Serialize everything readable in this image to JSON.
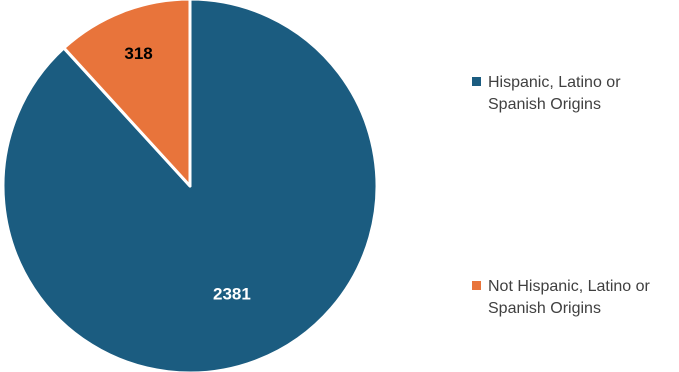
{
  "chart_data": {
    "type": "pie",
    "title": "",
    "categories": [
      "Hispanic, Latino or Spanish Origins",
      "Not Hispanic, Latino or Spanish Origins"
    ],
    "values": [
      2381,
      318
    ],
    "data_labels": [
      "2381",
      "318"
    ],
    "colors": [
      "#1b5c80",
      "#e8743b"
    ],
    "label_colors": [
      "#ffffff",
      "#000000"
    ],
    "legend": {
      "placement": "right",
      "entries": [
        "Hispanic, Latino or Spanish Origins",
        "Not Hispanic, Latino or Spanish Origins"
      ]
    }
  }
}
